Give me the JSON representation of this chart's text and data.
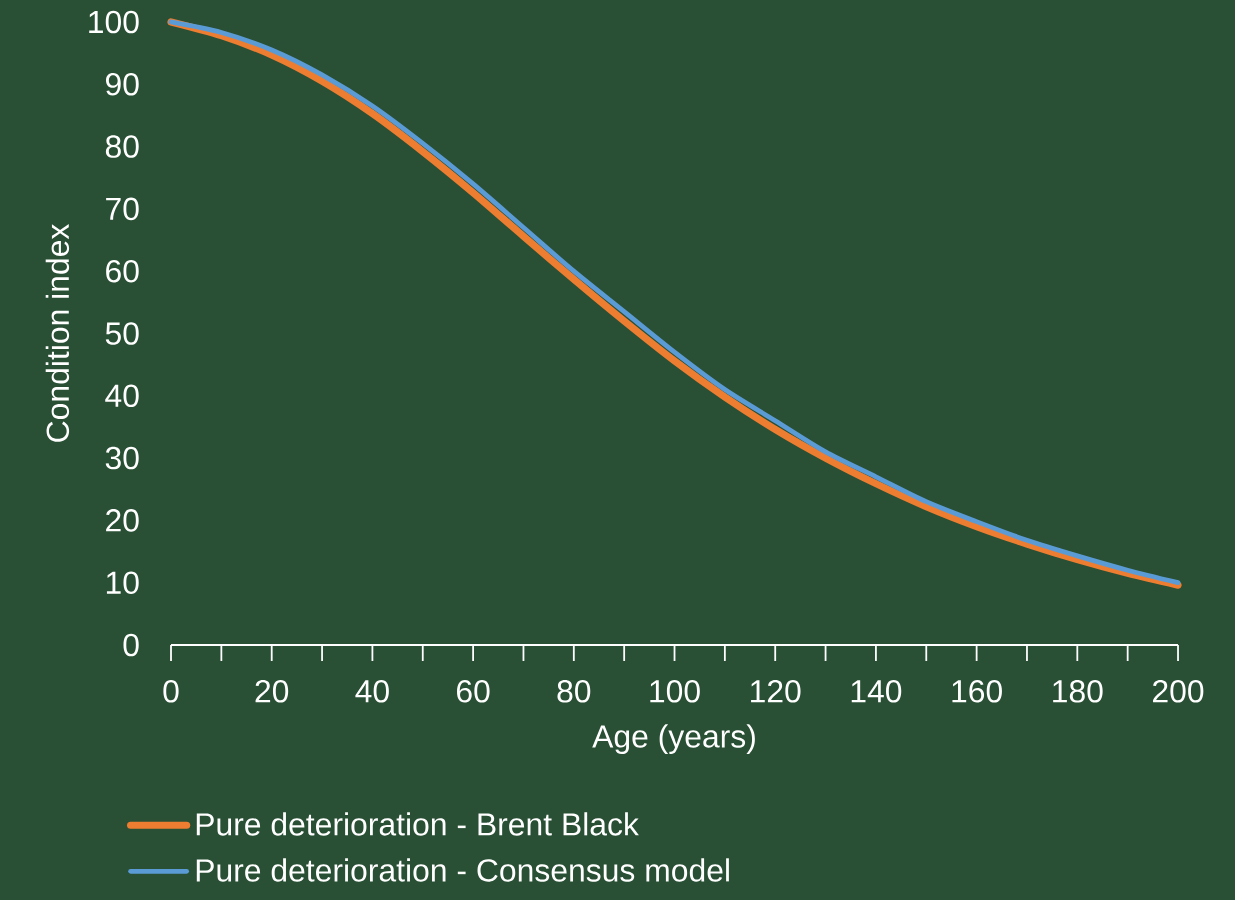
{
  "chart_data": {
    "type": "line",
    "xlabel": "Age (years)",
    "ylabel": "Condition index",
    "x": [
      0,
      10,
      20,
      30,
      40,
      50,
      60,
      70,
      80,
      90,
      100,
      110,
      120,
      130,
      140,
      150,
      160,
      170,
      180,
      190,
      200
    ],
    "series": [
      {
        "name": "Pure deterioration - Brent Black",
        "color": "#ed7d31",
        "values": [
          100,
          97.8,
          94.7,
          90.5,
          85.3,
          79.2,
          72.6,
          65.6,
          58.7,
          52,
          45.6,
          39.8,
          34.6,
          30,
          25.9,
          22.2,
          19,
          16.2,
          13.7,
          11.5,
          9.6
        ]
      },
      {
        "name": "Pure deterioration - Consensus model",
        "color": "#5b9bd5",
        "values": [
          100,
          98.3,
          95.5,
          91.5,
          86.5,
          80.5,
          74,
          67,
          60,
          53.5,
          47,
          41,
          36,
          31,
          27,
          23,
          19.8,
          16.8,
          14.3,
          12,
          10
        ]
      }
    ],
    "xlim": [
      0,
      200
    ],
    "ylim": [
      0,
      100
    ],
    "xticks": [
      0,
      {
        "value": 10,
        "label": null
      },
      20,
      {
        "value": 30,
        "label": null
      },
      40,
      {
        "value": 50,
        "label": null
      },
      60,
      {
        "value": 70,
        "label": null
      },
      80,
      {
        "value": 90,
        "label": null
      },
      100,
      {
        "value": 110,
        "label": null
      },
      120,
      {
        "value": 130,
        "label": null
      },
      140,
      {
        "value": 150,
        "label": null
      },
      160,
      {
        "value": 170,
        "label": null
      },
      180,
      {
        "value": 190,
        "label": null
      },
      200
    ],
    "yticks": [
      0,
      10,
      20,
      30,
      40,
      50,
      60,
      70,
      80,
      90,
      100
    ],
    "grid": false,
    "legend": "bottom",
    "marker": "none",
    "line_style": "solid"
  }
}
